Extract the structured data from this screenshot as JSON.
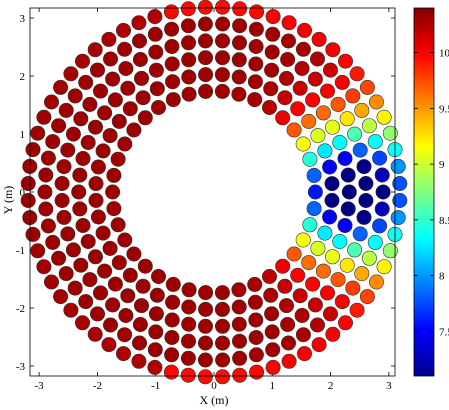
{
  "chart_data": {
    "type": "scatter",
    "title": "",
    "xlabel": "X (m)",
    "ylabel": "Y (m)",
    "xlim": [
      -3.2,
      3.2
    ],
    "ylim": [
      -3.2,
      3.2
    ],
    "xticks": [
      "-3",
      "-2",
      "-1",
      "0",
      "1",
      "2",
      "3"
    ],
    "yticks": [
      "-3",
      "-2",
      "-1",
      "0",
      "1",
      "2",
      "3"
    ],
    "grid": false,
    "colorbar": {
      "placement": "right",
      "range": [
        7.1,
        10.4
      ],
      "ticks": [
        "7.5",
        "8",
        "8.5",
        "9",
        "9.5",
        "10"
      ],
      "colormap": "jet"
    },
    "rings": [
      {
        "radius": 1.74,
        "count": 38
      },
      {
        "radius": 2.03,
        "count": 44
      },
      {
        "radius": 2.32,
        "count": 50
      },
      {
        "radius": 2.61,
        "count": 56
      },
      {
        "radius": 2.9,
        "count": 62
      },
      {
        "radius": 3.19,
        "count": 68
      }
    ],
    "value_model": {
      "peak": 10.3,
      "trough": 7.2,
      "trough_center": [
        2.35,
        0.0
      ],
      "trough_width": 0.75,
      "edge_cooling": 0.35
    }
  }
}
